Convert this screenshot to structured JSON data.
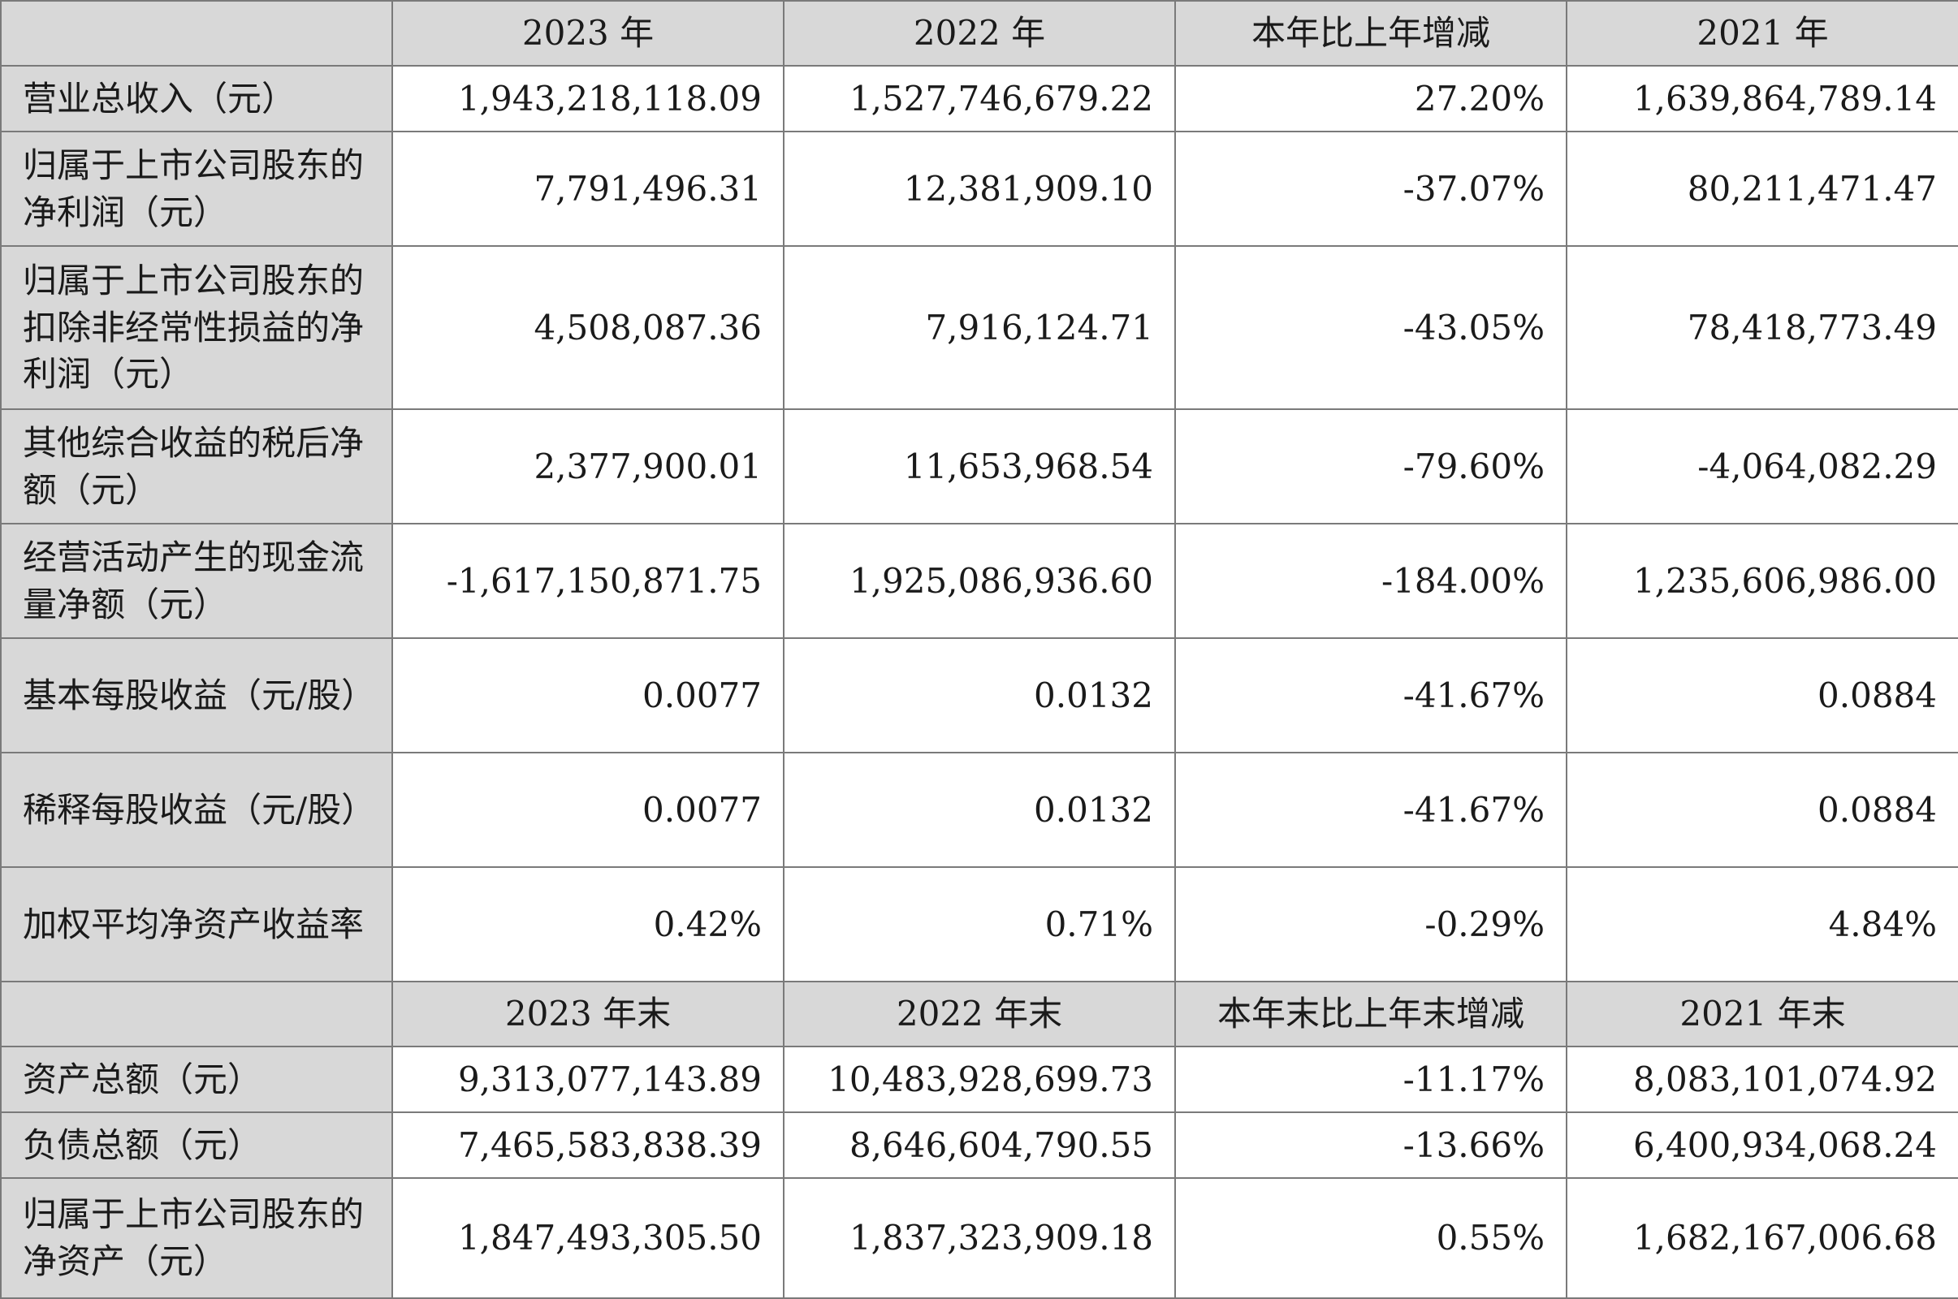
{
  "header1": [
    "",
    "2023 年",
    "2022 年",
    "本年比上年增减",
    "2021 年"
  ],
  "rows1": [
    {
      "label": "营业总收入（元）",
      "values": [
        "1,943,218,118.09",
        "1,527,746,679.22",
        "27.20%",
        "1,639,864,789.14"
      ]
    },
    {
      "label": "归属于上市公司股东的净利润（元）",
      "values": [
        "7,791,496.31",
        "12,381,909.10",
        "-37.07%",
        "80,211,471.47"
      ]
    },
    {
      "label": "归属于上市公司股东的扣除非经常性损益的净利润（元）",
      "values": [
        "4,508,087.36",
        "7,916,124.71",
        "-43.05%",
        "78,418,773.49"
      ]
    },
    {
      "label": "其他综合收益的税后净额（元）",
      "values": [
        "2,377,900.01",
        "11,653,968.54",
        "-79.60%",
        "-4,064,082.29"
      ]
    },
    {
      "label": "经营活动产生的现金流量净额（元）",
      "values": [
        "-1,617,150,871.75",
        "1,925,086,936.60",
        "-184.00%",
        "1,235,606,986.00"
      ]
    },
    {
      "label": "基本每股收益（元/股）",
      "values": [
        "0.0077",
        "0.0132",
        "-41.67%",
        "0.0884"
      ]
    },
    {
      "label": "稀释每股收益（元/股）",
      "values": [
        "0.0077",
        "0.0132",
        "-41.67%",
        "0.0884"
      ]
    },
    {
      "label": "加权平均净资产收益率",
      "values": [
        "0.42%",
        "0.71%",
        "-0.29%",
        "4.84%"
      ]
    }
  ],
  "header2": [
    "",
    "2023 年末",
    "2022 年末",
    "本年末比上年末增减",
    "2021 年末"
  ],
  "rows2": [
    {
      "label": "资产总额（元）",
      "values": [
        "9,313,077,143.89",
        "10,483,928,699.73",
        "-11.17%",
        "8,083,101,074.92"
      ]
    },
    {
      "label": "负债总额（元）",
      "values": [
        "7,465,583,838.39",
        "8,646,604,790.55",
        "-13.66%",
        "6,400,934,068.24"
      ]
    },
    {
      "label": "归属于上市公司股东的净资产（元）",
      "values": [
        "1,847,493,305.50",
        "1,837,323,909.18",
        "0.55%",
        "1,682,167,006.68"
      ]
    }
  ]
}
